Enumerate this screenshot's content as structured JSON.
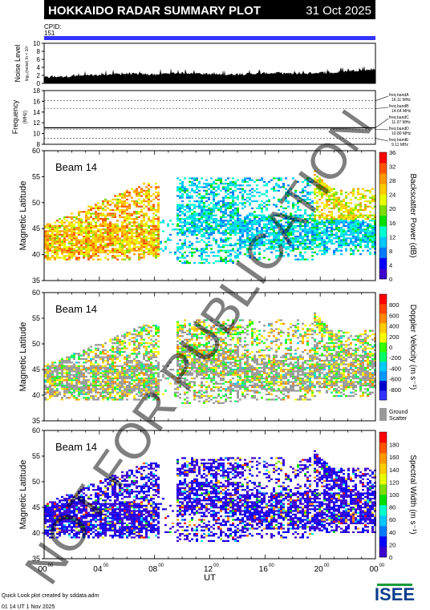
{
  "header": {
    "title": "HOKKAIDO RADAR SUMMARY PLOT",
    "date": "31 Oct 2025",
    "cpid_label": "CPID:",
    "cpid_value": "151"
  },
  "watermark": "NOT FOR PUBLICATION",
  "footer": {
    "line1": "Quick Look plot created by sddata.adm",
    "line2": "01 14 UT  1 Nov 2025",
    "logo_text": "ISEE"
  },
  "colors": {
    "cpid_bar": "#3333ff",
    "ground_scatter": "#999999",
    "power_scale": [
      "#3c00d0",
      "#0000ff",
      "#007bff",
      "#00c8ff",
      "#00ffd0",
      "#00e000",
      "#7cde00",
      "#e8ff00",
      "#ffcc00",
      "#ff9900",
      "#ff5500",
      "#ff0000"
    ],
    "velocity_scale": [
      "#3333ff",
      "#0000cc",
      "#0099ff",
      "#00ccff",
      "#00ff66",
      "#33ff00",
      "#ffff00",
      "#ffcc00",
      "#ff8800",
      "#ff4400",
      "#ff0000"
    ],
    "width_scale": [
      "#3c00d0",
      "#0000ff",
      "#007bff",
      "#00c8ff",
      "#00ffd0",
      "#00e000",
      "#7cde00",
      "#e8ff00",
      "#ffcc00",
      "#ff9900",
      "#ff5500",
      "#ff0000"
    ]
  },
  "chart_data": [
    {
      "type": "area",
      "name": "noise",
      "ylabel": "Noise Level",
      "ylabel_unit": "log₁₀(noise) ln × 10⁴",
      "ylim": [
        0,
        10
      ],
      "yticks": [
        "0",
        "2",
        "4",
        "6",
        "8",
        "10"
      ],
      "x_range_hours": [
        0,
        24
      ],
      "baseline_values": [
        1.2,
        1.4,
        1.5,
        1.6,
        1.8,
        2.0,
        2.1,
        2.0,
        1.9,
        2.2,
        2.3,
        2.2,
        2.0,
        1.9,
        2.0,
        2.1,
        2.2,
        2.3,
        2.1,
        2.2,
        2.4,
        2.3,
        2.8,
        3.0,
        3.2
      ]
    },
    {
      "type": "line",
      "name": "frequency",
      "ylabel": "Frequency",
      "ylabel_unit": "(MHz)",
      "ylim": [
        8,
        18
      ],
      "yticks": [
        "8",
        "10",
        "12",
        "14",
        "16",
        "18"
      ],
      "bands": [
        {
          "label": "freq bandA",
          "value": "16.11 MHz",
          "mhz": 16.11
        },
        {
          "label": "freq bandB",
          "value": "14.64 MHz",
          "mhz": 14.64
        },
        {
          "label": "freq bandC",
          "value": "11.07 MHz",
          "mhz": 11.07
        },
        {
          "label": "freq bandD",
          "value": "10.80 MHz",
          "mhz": 10.8
        },
        {
          "label": "freq bandE",
          "value": "9.11 MHz",
          "mhz": 9.11
        }
      ],
      "operating_mhz": 11.07
    },
    {
      "type": "heatmap",
      "name": "power",
      "beam_label": "Beam 14",
      "ylabel": "Magnetic Latitude",
      "ylim": [
        35,
        60
      ],
      "yticks": [
        "35",
        "40",
        "45",
        "50",
        "55",
        "60"
      ],
      "colorbar_label": "Backscatter Power (dB)",
      "colorbar_range": [
        0,
        36
      ],
      "colorbar_ticks": [
        "0",
        "4",
        "8",
        "12",
        "16",
        "20",
        "24",
        "28",
        "32",
        "36"
      ]
    },
    {
      "type": "heatmap",
      "name": "velocity",
      "beam_label": "Beam 14",
      "ylabel": "Magnetic Latitude",
      "ylim": [
        35,
        60
      ],
      "yticks": [
        "35",
        "40",
        "45",
        "50",
        "55",
        "60"
      ],
      "colorbar_label": "Doppler Velocity (m s⁻¹)",
      "colorbar_range": [
        -1000,
        1000
      ],
      "colorbar_ticks": [
        "800",
        "600",
        "400",
        "200",
        "0",
        "-200",
        "-400",
        "-600",
        "-800"
      ],
      "ground_scatter_label": "Ground",
      "ground_scatter_label2": "Scatter"
    },
    {
      "type": "heatmap",
      "name": "width",
      "beam_label": "Beam 14",
      "ylabel": "Magnetic Latitude",
      "ylim": [
        35,
        60
      ],
      "yticks": [
        "35",
        "40",
        "45",
        "50",
        "55",
        "60"
      ],
      "colorbar_label": "Spectral Width (m s⁻¹)",
      "colorbar_range": [
        0,
        200
      ],
      "colorbar_ticks": [
        "0",
        "20",
        "40",
        "60",
        "80",
        "100",
        "120",
        "140",
        "160",
        "180"
      ],
      "xlabel": "UT",
      "xticks": [
        {
          "h": "00",
          "m": "00"
        },
        {
          "h": "04",
          "m": "00"
        },
        {
          "h": "08",
          "m": "00"
        },
        {
          "h": "12",
          "m": "00"
        },
        {
          "h": "16",
          "m": "00"
        },
        {
          "h": "20",
          "m": "00"
        },
        {
          "h": "00",
          "m": "00"
        }
      ]
    }
  ]
}
